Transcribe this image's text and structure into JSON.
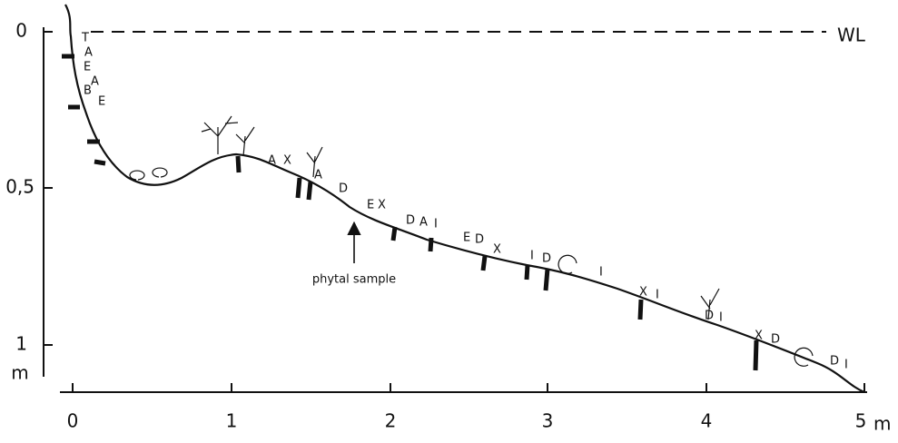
{
  "y_axis": {
    "ticks": [
      "0",
      "0,5",
      "1"
    ],
    "unit": "m"
  },
  "x_axis": {
    "ticks": [
      "0",
      "1",
      "2",
      "3",
      "4",
      "5"
    ],
    "unit": "m"
  },
  "water_level": "WL",
  "annotation": "phytal sample",
  "profile_labels": [
    "T",
    "A",
    "E",
    "A",
    "B",
    "E",
    "A",
    "X",
    "A",
    "D",
    "E",
    "X",
    "D",
    "A",
    "I",
    "E",
    "D",
    "X",
    "I",
    "D",
    "I",
    "X",
    "I",
    "D",
    "I",
    "X",
    "D",
    "D",
    "I"
  ]
}
